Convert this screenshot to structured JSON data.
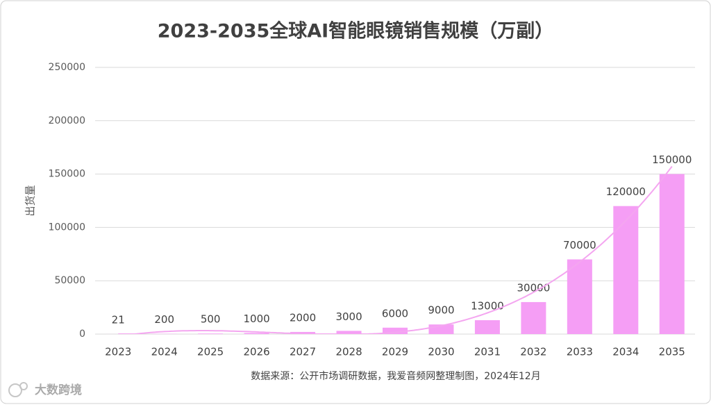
{
  "chart_data": {
    "type": "bar",
    "title": "2023-2035全球AI智能眼镜销售规模（万副）",
    "y_label": "出货量",
    "source": "数据来源：公开市场调研数据，我爱音频网整理制图，2024年12月",
    "watermark": "大数跨境",
    "categories": [
      "2023",
      "2024",
      "2025",
      "2026",
      "2027",
      "2028",
      "2029",
      "2030",
      "2031",
      "2032",
      "2033",
      "2034",
      "2035"
    ],
    "values": [
      21,
      200,
      500,
      1000,
      2000,
      3000,
      6000,
      9000,
      13000,
      30000,
      70000,
      120000,
      150000
    ],
    "color": "#f59ef5",
    "trendline": true,
    "trendline_color": "#f4a6f0",
    "ylim": [
      0,
      250000
    ],
    "yticks": [
      0,
      50000,
      100000,
      150000,
      200000,
      250000
    ],
    "grid": true
  }
}
